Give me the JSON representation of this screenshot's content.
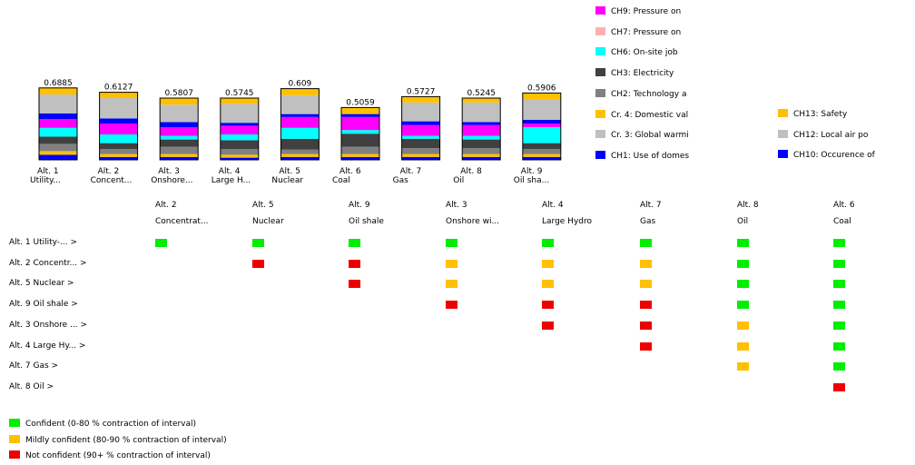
{
  "chart_data": {
    "type": "bar",
    "stacked": true,
    "categories": [
      "Alt. 1",
      "Alt. 2",
      "Alt. 3",
      "Alt. 4",
      "Alt. 5",
      "Alt. 6",
      "Alt. 7",
      "Alt. 8",
      "Alt. 9"
    ],
    "category_names": [
      "Utility...",
      "Concent...",
      "Onshore...",
      "Large H...",
      "Nuclear",
      "Coal",
      "Gas",
      "Oil",
      "Oil sha..."
    ],
    "totals": [
      "0.6885",
      "0.6127",
      "0.5807",
      "0.5745",
      "0.609",
      "0.5059",
      "0.5727",
      "0.5245",
      "0.5906"
    ],
    "series_colors": {
      "CH1": "#0000ff",
      "Cr2": "#ffc000",
      "CH2": "#808080",
      "CH3": "#404040",
      "CH6": "#00ffff",
      "CH7": "#ffb0b0",
      "CH9": "#ff00ff",
      "CH10": "#0000ff",
      "Cr3": "#c0c0c0",
      "Cr4": "#ffc000"
    },
    "stacks": [
      [
        [
          "#0000ff",
          0.035
        ],
        [
          "#ffc000",
          0.025
        ],
        [
          "#808080",
          0.05
        ],
        [
          "#404040",
          0.05
        ],
        [
          "#00ffff",
          0.06
        ],
        [
          "#ff00ff",
          0.06
        ],
        [
          "#0000ff",
          0.04
        ],
        [
          "#c0c0c0",
          0.13
        ],
        [
          "#ffc000",
          0.045
        ]
      ],
      [
        [
          "#0000ff",
          0.02
        ],
        [
          "#ffc000",
          0.02
        ],
        [
          "#808080",
          0.035
        ],
        [
          "#404040",
          0.04
        ],
        [
          "#00ffff",
          0.06
        ],
        [
          "#ff00ff",
          0.075
        ],
        [
          "#0000ff",
          0.035
        ],
        [
          "#c0c0c0",
          0.14
        ],
        [
          "#ffc000",
          0.04
        ]
      ],
      [
        [
          "#0000ff",
          0.02
        ],
        [
          "#ffc000",
          0.02
        ],
        [
          "#808080",
          0.05
        ],
        [
          "#404040",
          0.05
        ],
        [
          "#00ffff",
          0.025
        ],
        [
          "#ff00ff",
          0.06
        ],
        [
          "#0000ff",
          0.035
        ],
        [
          "#c0c0c0",
          0.12
        ],
        [
          "#ffc000",
          0.045
        ]
      ],
      [
        [
          "#0000ff",
          0.015
        ],
        [
          "#ffc000",
          0.02
        ],
        [
          "#808080",
          0.04
        ],
        [
          "#404040",
          0.06
        ],
        [
          "#00ffff",
          0.04
        ],
        [
          "#ff00ff",
          0.06
        ],
        [
          "#0000ff",
          0.02
        ],
        [
          "#c0c0c0",
          0.13
        ],
        [
          "#ffc000",
          0.04
        ]
      ],
      [
        [
          "#0000ff",
          0.02
        ],
        [
          "#ffc000",
          0.02
        ],
        [
          "#808080",
          0.03
        ],
        [
          "#404040",
          0.075
        ],
        [
          "#00ffff",
          0.075
        ],
        [
          "#ff00ff",
          0.075
        ],
        [
          "#0000ff",
          0.02
        ],
        [
          "#c0c0c0",
          0.13
        ],
        [
          "#ffc000",
          0.045
        ]
      ],
      [
        [
          "#0000ff",
          0.02
        ],
        [
          "#ffc000",
          0.02
        ],
        [
          "#808080",
          0.05
        ],
        [
          "#404040",
          0.09
        ],
        [
          "#00ffff",
          0.025
        ],
        [
          "#ff00ff",
          0.09
        ],
        [
          "#0000ff",
          0.02
        ],
        [
          "#c0c0c0",
          0.0
        ],
        [
          "#ffc000",
          0.045
        ]
      ],
      [
        [
          "#0000ff",
          0.02
        ],
        [
          "#ffc000",
          0.02
        ],
        [
          "#808080",
          0.04
        ],
        [
          "#404040",
          0.065
        ],
        [
          "#00ffff",
          0.02
        ],
        [
          "#ff00ff",
          0.075
        ],
        [
          "#0000ff",
          0.025
        ],
        [
          "#c0c0c0",
          0.13
        ],
        [
          "#ffc000",
          0.04
        ]
      ],
      [
        [
          "#0000ff",
          0.02
        ],
        [
          "#ffc000",
          0.02
        ],
        [
          "#808080",
          0.04
        ],
        [
          "#404040",
          0.06
        ],
        [
          "#00ffff",
          0.025
        ],
        [
          "#ff00ff",
          0.075
        ],
        [
          "#0000ff",
          0.02
        ],
        [
          "#c0c0c0",
          0.135
        ],
        [
          "#ffc000",
          0.03
        ]
      ],
      [
        [
          "#0000ff",
          0.02
        ],
        [
          "#ffc000",
          0.02
        ],
        [
          "#808080",
          0.035
        ],
        [
          "#404040",
          0.04
        ],
        [
          "#00ffff",
          0.11
        ],
        [
          "#ff00ff",
          0.025
        ],
        [
          "#0000ff",
          0.025
        ],
        [
          "#c0c0c0",
          0.14
        ],
        [
          "#ffc000",
          0.045
        ]
      ]
    ],
    "ylim": [
      0,
      0.7
    ]
  },
  "legend": {
    "col1": [
      {
        "label": "CH9: Pressure on",
        "color": "#ff00ff"
      },
      {
        "label": "CH7: Pressure on",
        "color": "#ffb0b0"
      },
      {
        "label": "CH6: On-site job",
        "color": "#00ffff"
      },
      {
        "label": "CH3: Electricity",
        "color": "#404040"
      },
      {
        "label": "CH2: Technology a",
        "color": "#808080"
      },
      {
        "label": "Cr. 4: Domestic val",
        "color": "#ffc000"
      },
      {
        "label": "Cr. 3: Global warmi",
        "color": "#c0c0c0"
      },
      {
        "label": "CH1: Use of domes",
        "color": "#0000ff"
      }
    ],
    "col2": [
      {
        "label": "CH13: Safety",
        "color": "#ffc000"
      },
      {
        "label": "CH12: Local air po",
        "color": "#c0c0c0"
      },
      {
        "label": "CH10: Occurence of",
        "color": "#0000ff"
      }
    ]
  },
  "matrix": {
    "columns": [
      {
        "alt": "Alt. 2",
        "name": "Concentrat..."
      },
      {
        "alt": "Alt. 5",
        "name": "Nuclear"
      },
      {
        "alt": "Alt. 9",
        "name": "Oil shale"
      },
      {
        "alt": "Alt. 3",
        "name": "Onshore wi..."
      },
      {
        "alt": "Alt. 4",
        "name": "Large Hydro"
      },
      {
        "alt": "Alt. 7",
        "name": "Gas"
      },
      {
        "alt": "Alt. 8",
        "name": "Oil"
      },
      {
        "alt": "Alt. 6",
        "name": "Coal"
      }
    ],
    "rows": [
      {
        "label": "Alt. 1 Utility-... >",
        "cells": [
          "g",
          "g",
          "g",
          "g",
          "g",
          "g",
          "g",
          "g"
        ]
      },
      {
        "label": "Alt. 2 Concentr... >",
        "cells": [
          "",
          "r",
          "r",
          "y",
          "y",
          "y",
          "g",
          "g"
        ]
      },
      {
        "label": "Alt. 5 Nuclear >",
        "cells": [
          "",
          "",
          "r",
          "y",
          "y",
          "y",
          "g",
          "g"
        ]
      },
      {
        "label": "Alt. 9 Oil shale >",
        "cells": [
          "",
          "",
          "",
          "r",
          "r",
          "r",
          "g",
          "g"
        ]
      },
      {
        "label": "Alt. 3 Onshore ... >",
        "cells": [
          "",
          "",
          "",
          "",
          "r",
          "r",
          "y",
          "g"
        ]
      },
      {
        "label": "Alt. 4 Large Hy... >",
        "cells": [
          "",
          "",
          "",
          "",
          "",
          "r",
          "y",
          "g"
        ]
      },
      {
        "label": "Alt. 7 Gas >",
        "cells": [
          "",
          "",
          "",
          "",
          "",
          "",
          "y",
          "g"
        ]
      },
      {
        "label": "Alt. 8 Oil >",
        "cells": [
          "",
          "",
          "",
          "",
          "",
          "",
          "",
          "r"
        ]
      }
    ],
    "colors": {
      "g": "#00ee00",
      "y": "#ffc000",
      "r": "#ee0000"
    }
  },
  "confidence": [
    {
      "label": "Confident (0-80 % contraction of interval)",
      "color": "#00ee00"
    },
    {
      "label": "Mildly confident (80-90 % contraction of interval)",
      "color": "#ffc000"
    },
    {
      "label": "Not confident (90+ % contraction of interval)",
      "color": "#ee0000"
    }
  ]
}
